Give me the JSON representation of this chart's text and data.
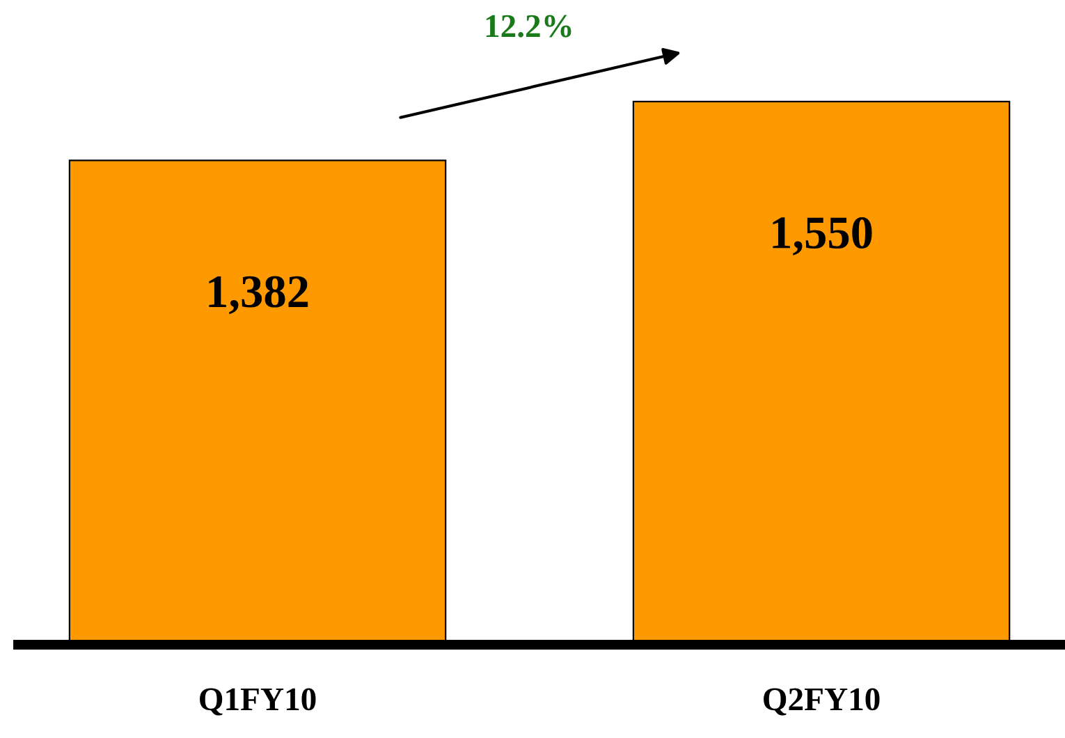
{
  "chart_data": {
    "type": "bar",
    "categories": [
      "Q1FY10",
      "Q2FY10"
    ],
    "values": [
      1382,
      1550
    ],
    "value_labels": [
      "1,382",
      "1,550"
    ],
    "color": "#ff9900",
    "annotations": [
      "12.2%"
    ],
    "grid": false,
    "legend": false
  }
}
